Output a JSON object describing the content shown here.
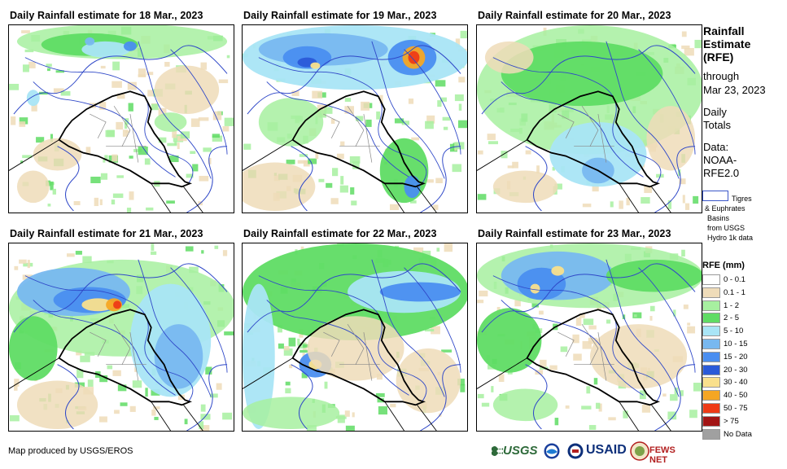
{
  "panels": [
    {
      "title": "Daily Rainfall estimate for 18 Mar., 2023"
    },
    {
      "title": "Daily Rainfall estimate for 19 Mar., 2023"
    },
    {
      "title": "Daily Rainfall estimate for 20 Mar., 2023"
    },
    {
      "title": "Daily Rainfall estimate for 21 Mar., 2023"
    },
    {
      "title": "Daily Rainfall estimate for 22 Mar., 2023"
    },
    {
      "title": "Daily Rainfall estimate for 23 Mar., 2023"
    }
  ],
  "side": {
    "title_lines": [
      "Rainfall",
      "Estimate",
      "(RFE)"
    ],
    "through": "through",
    "date": "Mar 23, 2023",
    "daily": "Daily",
    "totals": "Totals",
    "data_label": "Data:",
    "data_source_1": "NOAA-",
    "data_source_2": "RFE2.0",
    "basin_lines": [
      "Tigres",
      "& Euphrates",
      "Basins",
      "from USGS",
      "Hydro 1k data"
    ]
  },
  "legend": {
    "title": "RFE (mm)",
    "items": [
      {
        "label": "0 - 0.1",
        "color": "#ffffff"
      },
      {
        "label": "0.1 - 1",
        "color": "#efdcb9"
      },
      {
        "label": "1 - 2",
        "color": "#a7f0a0"
      },
      {
        "label": "2 - 5",
        "color": "#5fdc64"
      },
      {
        "label": "5 - 10",
        "color": "#a9e5f6"
      },
      {
        "label": "10 - 15",
        "color": "#78b8f0"
      },
      {
        "label": "15 - 20",
        "color": "#4a8ef0"
      },
      {
        "label": "20 - 30",
        "color": "#2a5ad8"
      },
      {
        "label": "30 - 40",
        "color": "#f9e08c"
      },
      {
        "label": "40 - 50",
        "color": "#f5a623"
      },
      {
        "label": "50 - 75",
        "color": "#ee3a16"
      },
      {
        "label": "> 75",
        "color": "#a31515"
      },
      {
        "label": "No Data",
        "color": "#a0a0a0"
      }
    ]
  },
  "credit": "Map produced by USGS/EROS",
  "logos": {
    "usgs": "USGS",
    "usaid": "USAID",
    "fews": "FEWS NET"
  }
}
